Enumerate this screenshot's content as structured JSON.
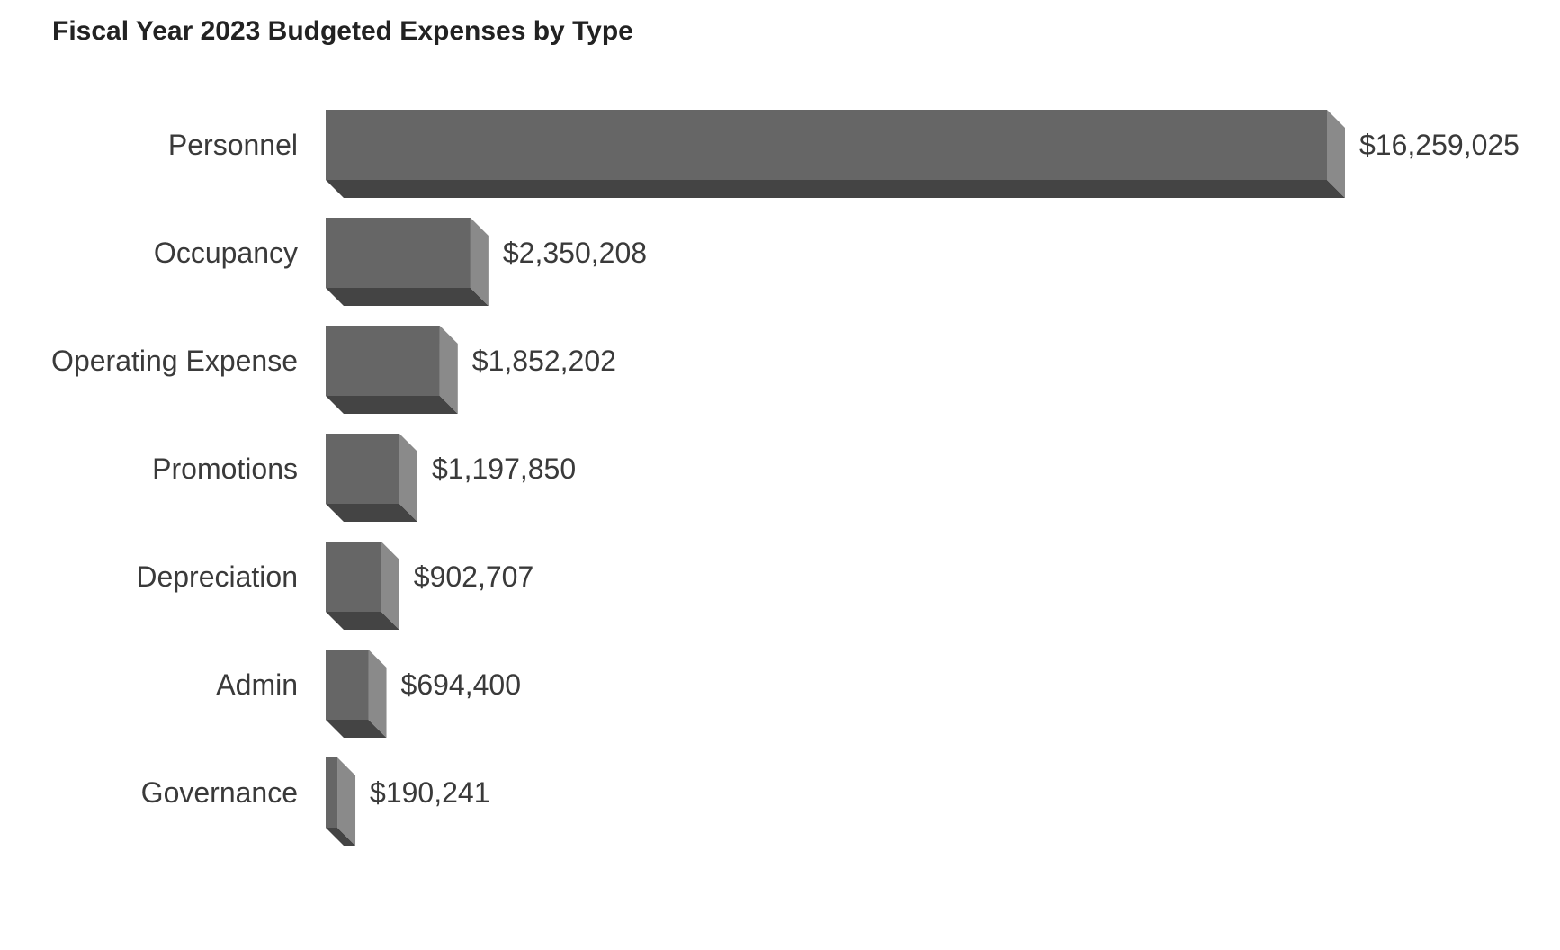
{
  "chart_data": {
    "type": "bar",
    "orientation": "horizontal",
    "style": "3d",
    "title": "Fiscal Year 2023 Budgeted Expenses by Type",
    "xlabel": "",
    "ylabel": "",
    "grid": false,
    "legend": "none",
    "categories": [
      "Personnel",
      "Occupancy",
      "Operating Expense",
      "Promotions",
      "Depreciation",
      "Admin",
      "Governance"
    ],
    "values": [
      16259025,
      2350208,
      1852202,
      1197850,
      902707,
      694400,
      190241
    ],
    "value_labels": [
      "$16,259,025",
      "$2,350,208",
      "$1,852,202",
      "$1,197,850",
      "$902,707",
      "$694,400",
      "$190,241"
    ],
    "xlim": [
      0,
      16259025
    ],
    "colors": {
      "face": "#666666",
      "side": "#8a8a8a",
      "bottom": "#444444"
    }
  }
}
